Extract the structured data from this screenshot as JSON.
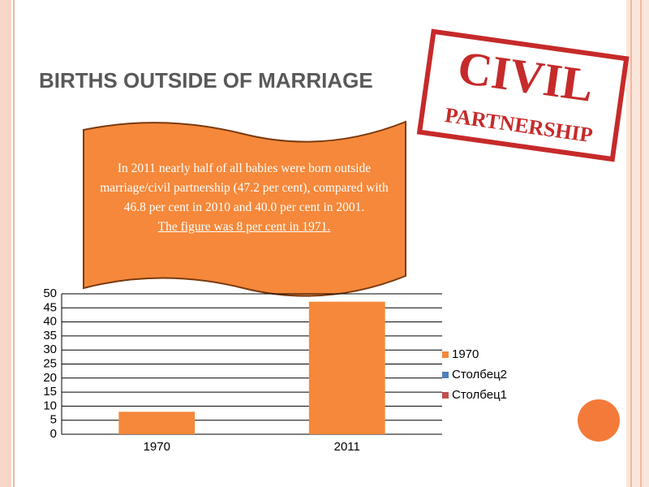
{
  "chart_data": {
    "type": "bar",
    "title": "BIRTHS OUTSIDE OF MARRIAGE",
    "annotations": [
      "In 2011 nearly half of all babies were born outside marriage/civil partnership (47.2 per cent), compared with 46.8 per cent in 2010 and 40.0 per cent in 2001.",
      "The figure was 8 per cent in 1971."
    ],
    "stamp": [
      "CIVIL",
      "PARTNERSHIP"
    ],
    "categories": [
      "1970",
      "2011"
    ],
    "series": [
      {
        "name": "1970",
        "color": "#f5883a",
        "values": [
          8,
          47.2
        ]
      },
      {
        "name": "Столбец2",
        "color": "#4f81bd",
        "values": [
          null,
          null
        ]
      },
      {
        "name": "Столбец1",
        "color": "#c0504d",
        "values": [
          null,
          null
        ]
      }
    ],
    "ylim": [
      0,
      50
    ],
    "yticks": [
      0,
      5,
      10,
      15,
      20,
      25,
      30,
      35,
      40,
      45,
      50
    ],
    "grid": true,
    "legend": "right"
  }
}
